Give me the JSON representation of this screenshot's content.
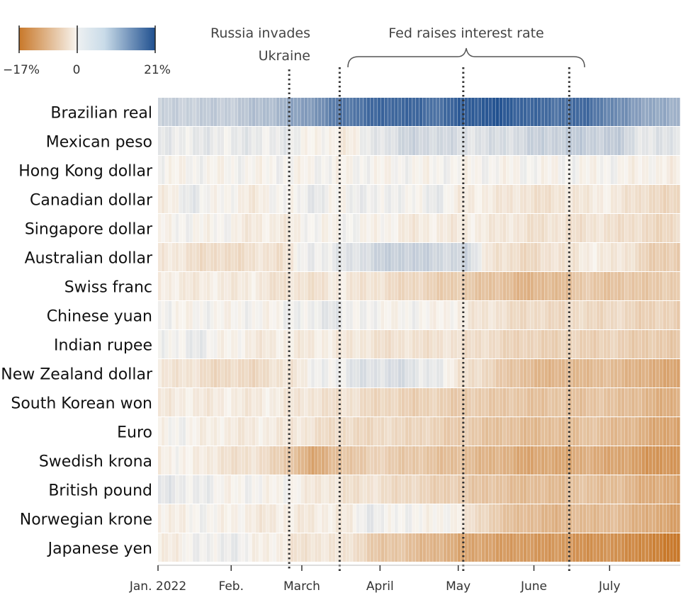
{
  "chart_data": {
    "type": "heatmap",
    "title": "",
    "xlabel": "",
    "ylabel": "",
    "value_unit": "%",
    "color_scale": {
      "min": -17,
      "mid": 0,
      "max": 21,
      "min_label": "−17%",
      "mid_label": "0",
      "max_label": "21%",
      "min_color": "#c8782a",
      "mid_color": "#f8f5f0",
      "max_color": "#1f4f8f"
    },
    "date_start": "2022-01-03",
    "date_end": "2022-07-29",
    "rows": [
      {
        "name": "Brazilian real",
        "values": [
          3,
          4,
          4,
          5,
          7,
          11,
          15,
          17,
          18,
          16,
          19,
          20,
          18,
          16,
          17,
          12,
          9,
          7
        ]
      },
      {
        "name": "Mexican peso",
        "values": [
          1,
          1,
          1,
          1,
          1,
          0,
          -1,
          1,
          3,
          3,
          2,
          2,
          3,
          4,
          4,
          4,
          1,
          2
        ]
      },
      {
        "name": "Hong Kong dollar",
        "values": [
          0,
          0,
          0,
          0,
          0,
          0,
          0,
          0,
          0,
          0,
          0,
          0,
          0,
          0,
          0,
          0,
          -0.5,
          -0.5
        ]
      },
      {
        "name": "Canadian dollar",
        "values": [
          -1,
          1,
          0,
          -1,
          0,
          1,
          0,
          1,
          0,
          1,
          -1,
          -1,
          -2,
          -2,
          -1,
          -1,
          -3,
          -3
        ]
      },
      {
        "name": "Singapore dollar",
        "values": [
          0,
          0,
          0,
          -1,
          -1,
          0,
          0,
          0,
          -1,
          -1,
          -1,
          -1,
          -2,
          -2,
          -2,
          -2,
          -3,
          -3
        ]
      },
      {
        "name": "Australian dollar",
        "values": [
          -1,
          -2,
          -3,
          -2,
          -2,
          1,
          1,
          3,
          4,
          3,
          3,
          -2,
          -3,
          -2,
          -1,
          -1,
          -4,
          -5
        ]
      },
      {
        "name": "Swiss franc",
        "values": [
          -1,
          -1,
          -1,
          -1,
          -2,
          -2,
          -1,
          -2,
          -3,
          -4,
          -5,
          -6,
          -8,
          -7,
          -5,
          -6,
          -5,
          -5
        ]
      },
      {
        "name": "Chinese yuan",
        "values": [
          0,
          0,
          0,
          0,
          0,
          1,
          1,
          0,
          0,
          0,
          -1,
          -2,
          -3,
          -3,
          -3,
          -3,
          -4,
          -4
        ]
      },
      {
        "name": "Indian rupee",
        "values": [
          0,
          1,
          0,
          -1,
          -1,
          -1,
          -1,
          -2,
          -2,
          -2,
          -2,
          -3,
          -4,
          -4,
          -4,
          -4,
          -5,
          -5
        ]
      },
      {
        "name": "New Zealand dollar",
        "values": [
          -1,
          -2,
          -3,
          -3,
          -2,
          0,
          1,
          2,
          2,
          1,
          -2,
          -4,
          -7,
          -8,
          -7,
          -7,
          -9,
          -10
        ]
      },
      {
        "name": "South Korean won",
        "values": [
          -1,
          -1,
          -1,
          -1,
          -1,
          -2,
          -2,
          -3,
          -4,
          -4,
          -5,
          -5,
          -6,
          -6,
          -6,
          -6,
          -8,
          -9
        ]
      },
      {
        "name": "Euro",
        "values": [
          0,
          0,
          -1,
          -1,
          -1,
          -2,
          -3,
          -3,
          -3,
          -4,
          -5,
          -6,
          -7,
          -7,
          -6,
          -7,
          -9,
          -11
        ]
      },
      {
        "name": "Swedish krona",
        "values": [
          -1,
          0,
          -2,
          -2,
          -4,
          -10,
          -6,
          -4,
          -5,
          -6,
          -7,
          -8,
          -10,
          -10,
          -9,
          -10,
          -12,
          -13
        ]
      },
      {
        "name": "British pound",
        "values": [
          1,
          1,
          0,
          0,
          0,
          -1,
          -2,
          -2,
          -3,
          -4,
          -5,
          -6,
          -7,
          -7,
          -6,
          -7,
          -9,
          -10
        ]
      },
      {
        "name": "Norwegian krone",
        "values": [
          -1,
          0,
          0,
          -1,
          -1,
          -1,
          -1,
          1,
          0,
          0,
          -1,
          -5,
          -7,
          -8,
          -7,
          -7,
          -9,
          -11
        ]
      },
      {
        "name": "Japanese yen",
        "values": [
          -1,
          0,
          1,
          0,
          -1,
          -2,
          -1,
          -5,
          -6,
          -8,
          -10,
          -11,
          -12,
          -12,
          -13,
          -13,
          -15,
          -17
        ]
      }
    ],
    "x_ticks": [
      {
        "label": "Jan. 2022",
        "date": "2022-01-03"
      },
      {
        "label": "Feb.",
        "date": "2022-02-01"
      },
      {
        "label": "March",
        "date": "2022-03-01"
      },
      {
        "label": "April",
        "date": "2022-04-01"
      },
      {
        "label": "May",
        "date": "2022-05-02"
      },
      {
        "label": "June",
        "date": "2022-06-01"
      },
      {
        "label": "July",
        "date": "2022-07-01"
      }
    ],
    "events": [
      {
        "label_line1": "Russia invades",
        "label_line2": "Ukraine",
        "date": "2022-02-24"
      },
      {
        "label": "Fed raises interest rate",
        "dates": [
          "2022-03-16",
          "2022-05-04",
          "2022-06-15"
        ]
      }
    ]
  }
}
